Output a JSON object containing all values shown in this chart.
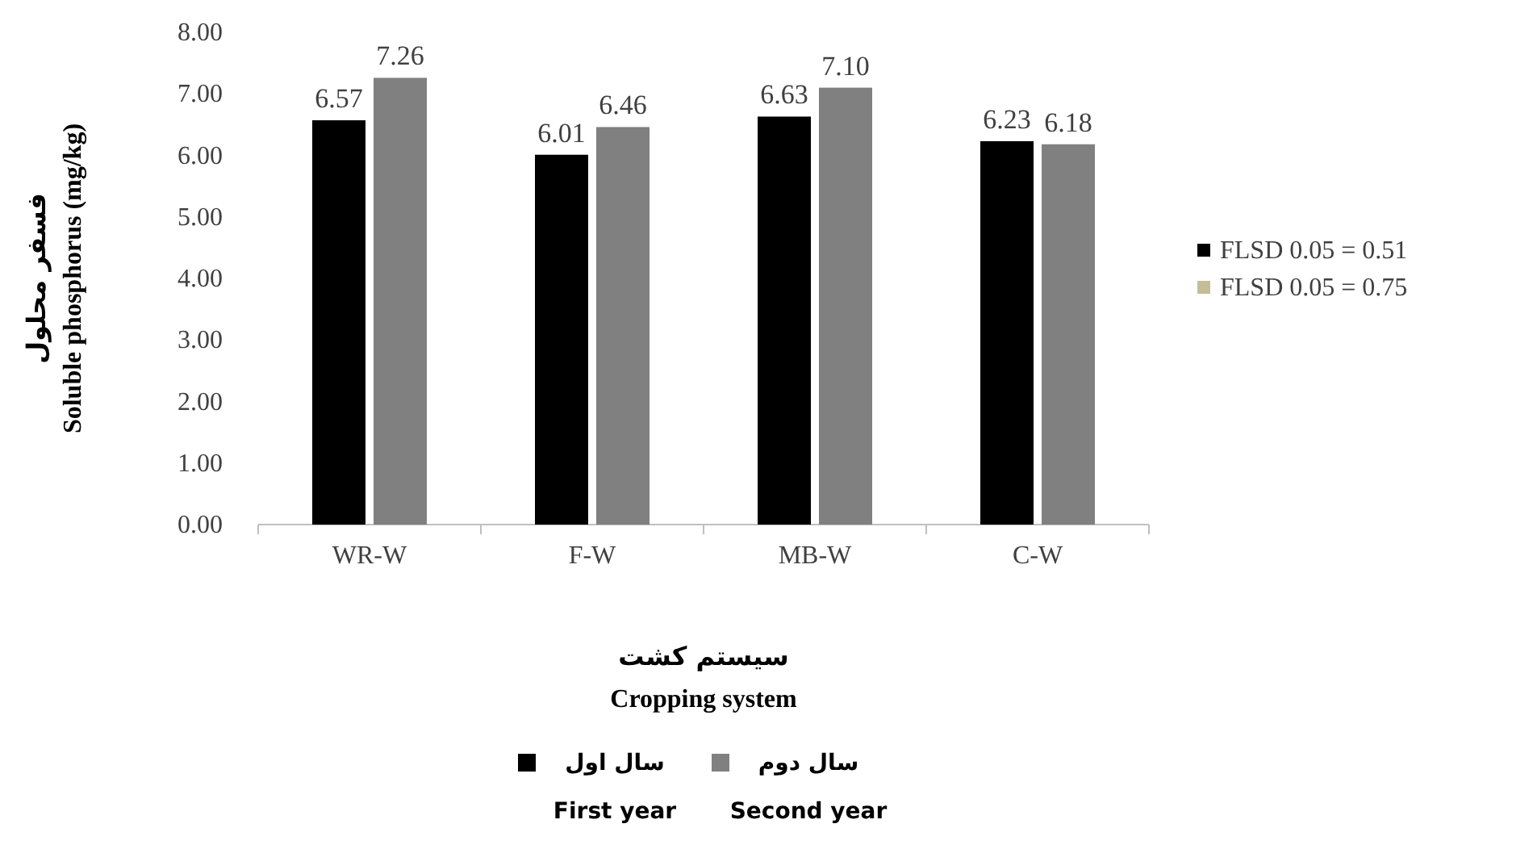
{
  "chart_data": {
    "type": "bar",
    "xlabel": "سیستم کشت\nCropping system",
    "ylabel": "فسفر محلول\nSoluble phosphorus (mg/kg)",
    "categories": [
      "WR-W",
      "F-W",
      "MB-W",
      "C-W"
    ],
    "series": [
      {
        "name": "سال اول\nFirst year",
        "color": "#000000",
        "values": [
          6.57,
          6.01,
          6.63,
          6.23
        ],
        "value_labels": [
          "6.57",
          "6.01",
          "6.63",
          "6.23"
        ]
      },
      {
        "name": "سال دوم\nSecond year",
        "color": "#808080",
        "values": [
          7.26,
          6.46,
          7.1,
          6.18
        ],
        "value_labels": [
          "7.26",
          "6.46",
          "7.10",
          "6.18"
        ]
      }
    ],
    "ylim": [
      0,
      8
    ],
    "yticks": [
      {
        "value": 0,
        "label": "0.00"
      },
      {
        "value": 1,
        "label": "1.00"
      },
      {
        "value": 2,
        "label": "2.00"
      },
      {
        "value": 3,
        "label": "3.00"
      },
      {
        "value": 4,
        "label": "4.00"
      },
      {
        "value": 5,
        "label": "5.00"
      },
      {
        "value": 6,
        "label": "6.00"
      },
      {
        "value": 7,
        "label": "7.00"
      },
      {
        "value": 8,
        "label": "8.00"
      }
    ],
    "legend": "bottom",
    "annotations": [
      "FLSD 0.05 = 0.51",
      "FLSD 0.05 = 0.75"
    ]
  }
}
